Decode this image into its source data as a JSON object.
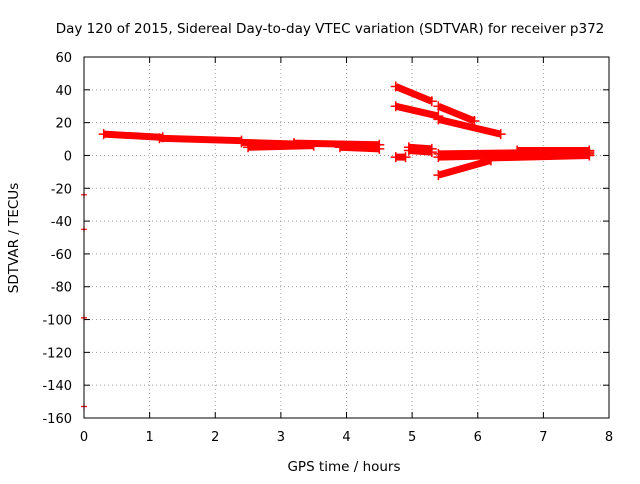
{
  "chart_data": {
    "type": "scatter",
    "title": "Day 120 of 2015, Sidereal Day-to-day VTEC variation (SDTVAR) for receiver p372",
    "xlabel": "GPS time / hours",
    "ylabel": "SDTVAR / TECUs",
    "xlim": [
      0,
      8
    ],
    "ylim": [
      -160,
      60
    ],
    "xticks": [
      0,
      1,
      2,
      3,
      4,
      5,
      6,
      7,
      8
    ],
    "yticks": [
      -160,
      -140,
      -120,
      -100,
      -80,
      -60,
      -40,
      -20,
      0,
      20,
      40,
      60
    ],
    "grid": true,
    "marker_color": "#ff0000",
    "series": [
      {
        "name": "SDTVAR",
        "segments": [
          {
            "x0": 0.3,
            "x1": 1.2,
            "y0": 13.0,
            "y1": 11.0
          },
          {
            "x0": 1.15,
            "x1": 2.4,
            "y0": 10.5,
            "y1": 9.0
          },
          {
            "x0": 2.4,
            "x1": 3.2,
            "y0": 8.0,
            "y1": 7.0
          },
          {
            "x0": 2.5,
            "x1": 3.5,
            "y0": 5.0,
            "y1": 6.0
          },
          {
            "x0": 3.2,
            "x1": 4.5,
            "y0": 7.5,
            "y1": 6.5
          },
          {
            "x0": 3.9,
            "x1": 4.5,
            "y0": 5.0,
            "y1": 4.0
          },
          {
            "x0": 4.75,
            "x1": 5.3,
            "y0": 42.0,
            "y1": 33.0
          },
          {
            "x0": 4.75,
            "x1": 5.4,
            "y0": 30.0,
            "y1": 24.0
          },
          {
            "x0": 5.4,
            "x1": 6.35,
            "y0": 22.0,
            "y1": 13.0
          },
          {
            "x0": 5.4,
            "x1": 5.95,
            "y0": 30.0,
            "y1": 21.0
          },
          {
            "x0": 4.75,
            "x1": 4.9,
            "y0": -1.0,
            "y1": -1.0
          },
          {
            "x0": 4.95,
            "x1": 5.3,
            "y0": 5.0,
            "y1": 4.0
          },
          {
            "x0": 4.95,
            "x1": 5.3,
            "y0": 3.0,
            "y1": 2.0
          },
          {
            "x0": 5.4,
            "x1": 6.2,
            "y0": -12.0,
            "y1": -3.0
          },
          {
            "x0": 5.4,
            "x1": 7.7,
            "y0": -1.0,
            "y1": 1.0
          },
          {
            "x0": 5.4,
            "x1": 7.7,
            "y0": 1.0,
            "y1": 2.0
          },
          {
            "x0": 6.2,
            "x1": 7.7,
            "y0": -1.5,
            "y1": 0.0
          },
          {
            "x0": 6.6,
            "x1": 7.7,
            "y0": 3.0,
            "y1": 3.0
          }
        ],
        "points": [
          {
            "x": 0.0,
            "y": -24
          },
          {
            "x": 0.0,
            "y": -45
          },
          {
            "x": 0.0,
            "y": -99
          },
          {
            "x": 0.0,
            "y": -153
          }
        ]
      }
    ]
  }
}
